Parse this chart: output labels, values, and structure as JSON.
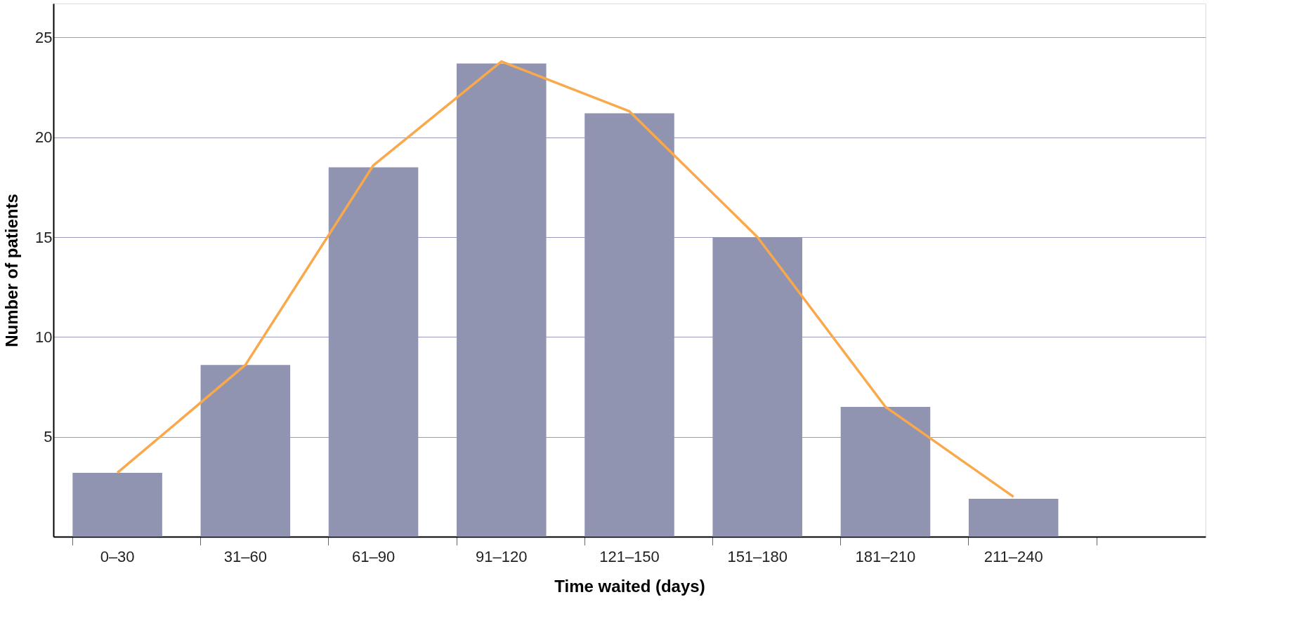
{
  "chart_data": {
    "type": "bar",
    "xlabel": "Time waited (days)",
    "ylabel": "Number of patients",
    "categories": [
      "0–30",
      "31–60",
      "61–90",
      "91–120",
      "121–150",
      "151–180",
      "181–210",
      "211–240",
      null
    ],
    "series": [
      {
        "color": "#9094b1",
        "values": [
          3.2,
          8.6,
          18.5,
          23.7,
          21.2,
          15.0,
          6.5,
          1.9,
          null
        ]
      },
      {
        "type": "line",
        "color": "#f9a94b",
        "values": [
          3.2,
          8.6,
          18.6,
          23.8,
          21.3,
          15.0,
          6.5,
          2.0,
          null
        ]
      }
    ],
    "ylim": [
      0,
      26.7
    ],
    "yticks": [
      5,
      10,
      15,
      20,
      25
    ],
    "grid": "y"
  }
}
